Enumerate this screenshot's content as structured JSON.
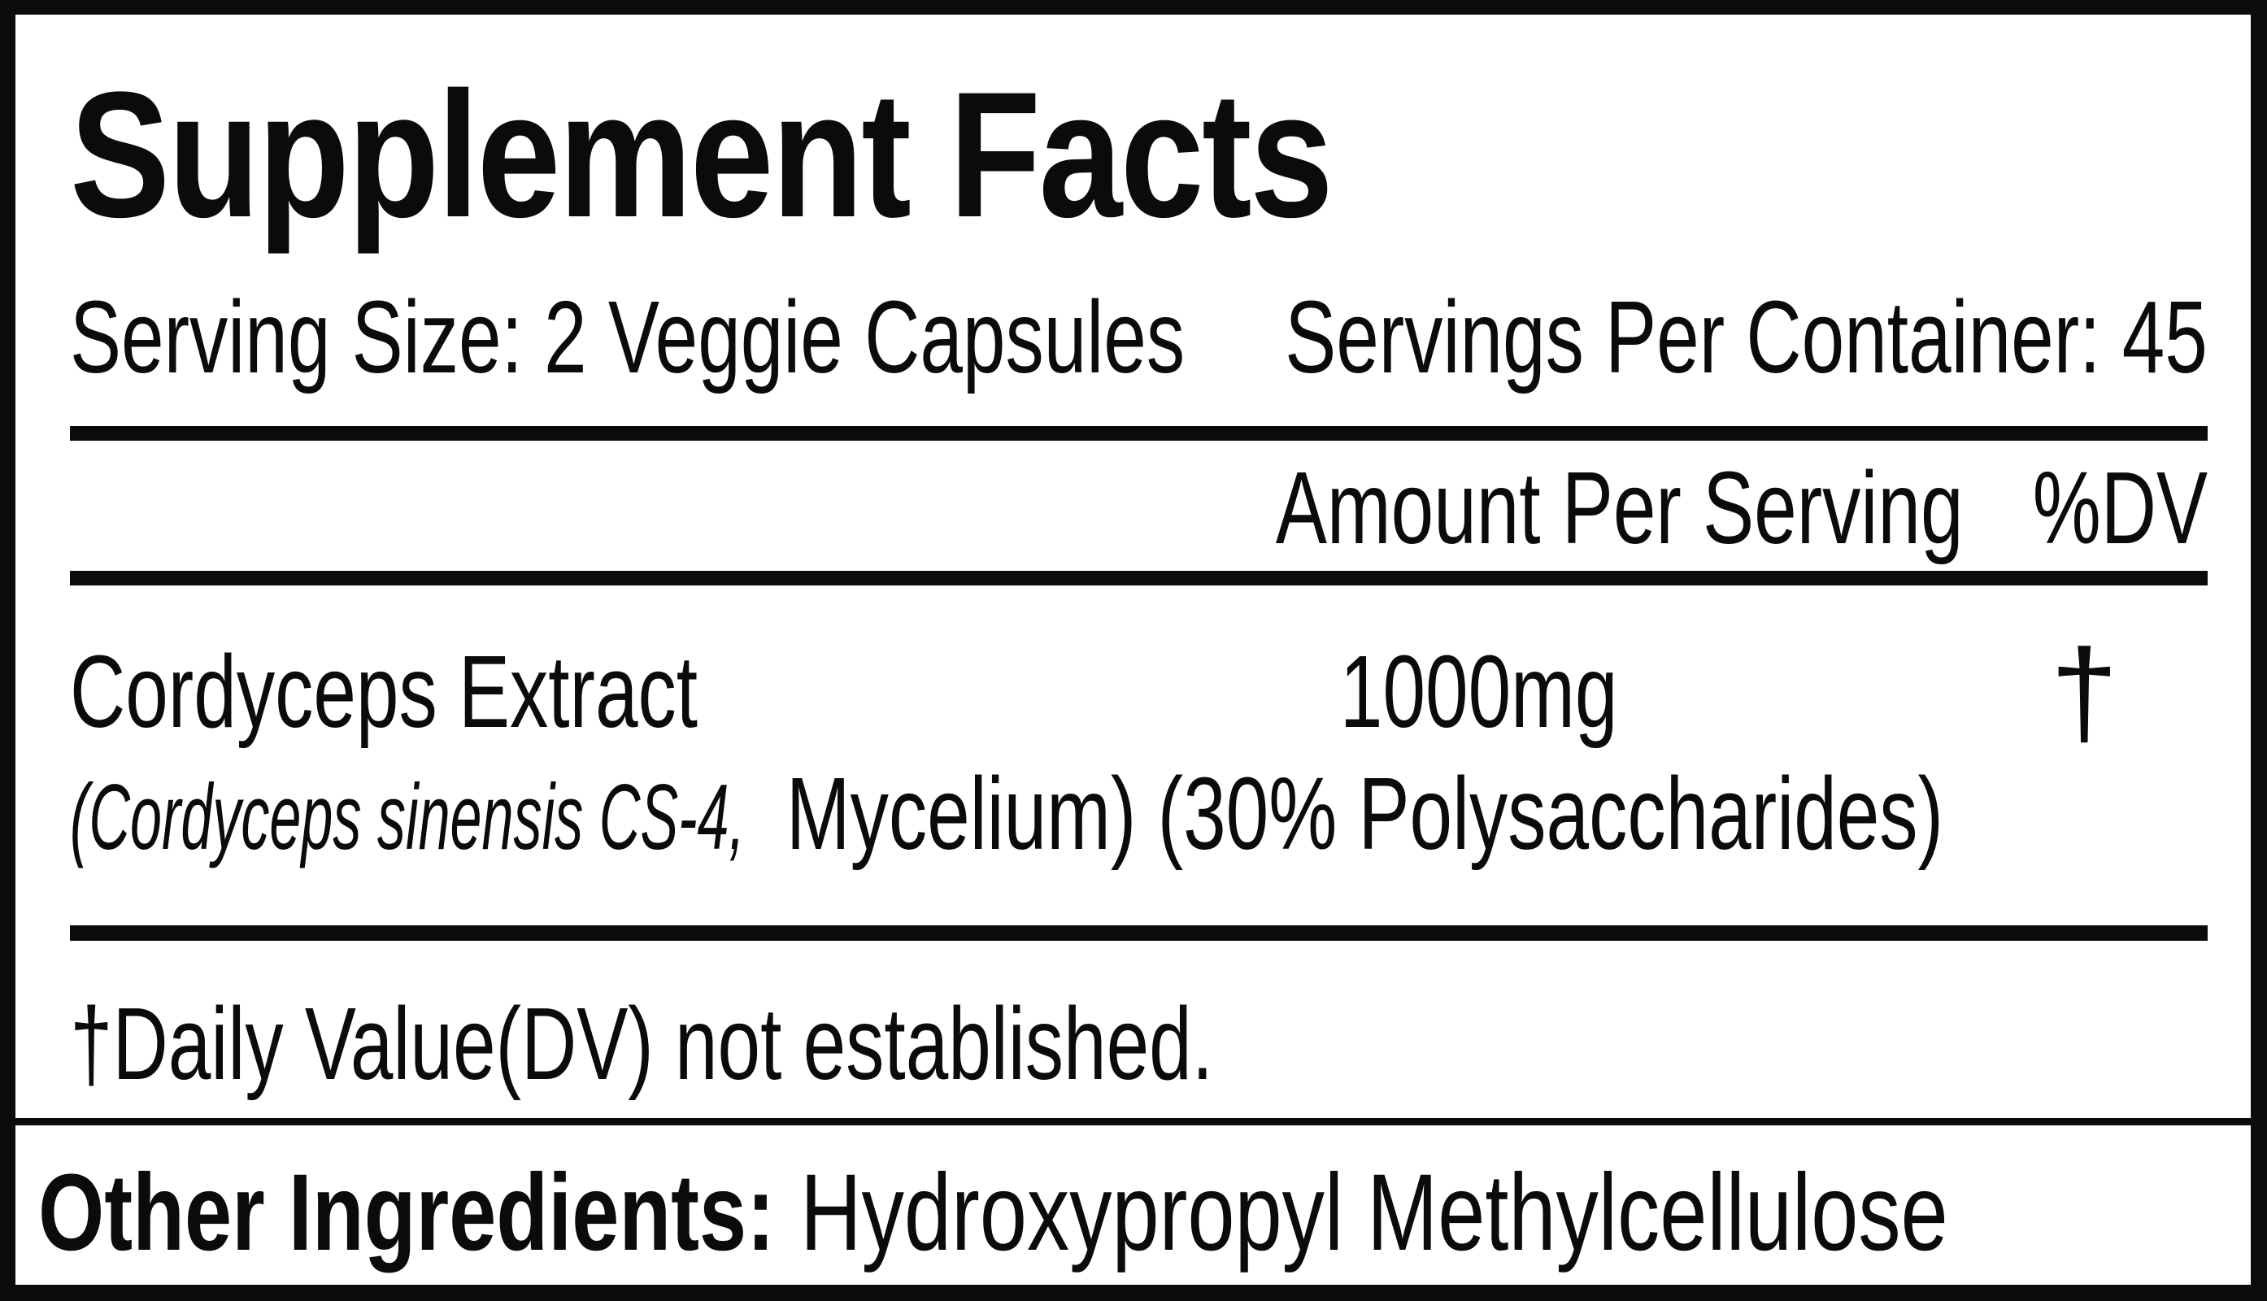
{
  "title": "Supplement Facts",
  "serving_line": {
    "serving_size": "Serving Size: 2 Veggie Capsules",
    "servings_per_container": "Servings Per Container: 45"
  },
  "table": {
    "header": {
      "amount": "Amount Per Serving",
      "dv": "%DV"
    },
    "rows": [
      {
        "name": "Cordyceps Extract",
        "amount": "1000mg",
        "dv": "†",
        "detail_latin": "(Cordyceps sinensis CS-4,",
        "detail_rest": "Mycelium) (30% Polysaccharides)"
      }
    ],
    "footnote": "†Daily Value(DV) not established."
  },
  "other_ingredients": {
    "label": "Other Ingredients:",
    "value": "Hydroxypropyl Methylcellulose"
  },
  "colors": {
    "ink": "#0b0b0b",
    "background": "#ffffff"
  }
}
